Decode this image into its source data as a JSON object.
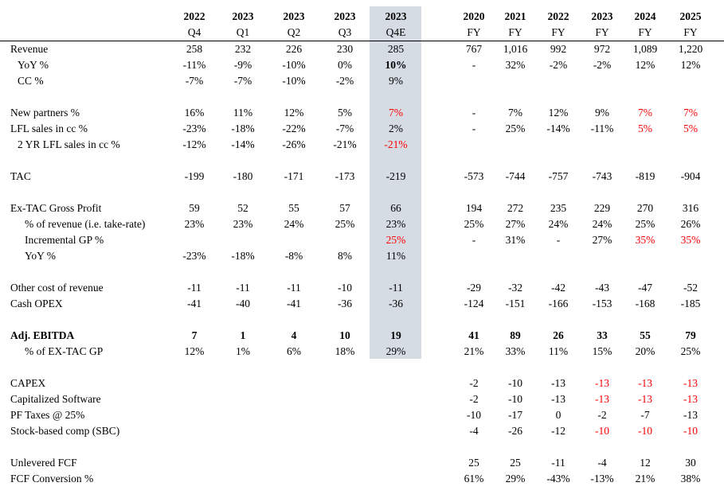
{
  "header": {
    "quarters": [
      {
        "year": "2022",
        "period": "Q4"
      },
      {
        "year": "2023",
        "period": "Q1"
      },
      {
        "year": "2023",
        "period": "Q2"
      },
      {
        "year": "2023",
        "period": "Q3"
      },
      {
        "year": "2023",
        "period": "Q4E"
      }
    ],
    "years": [
      {
        "year": "2020",
        "period": "FY"
      },
      {
        "year": "2021",
        "period": "FY"
      },
      {
        "year": "2022",
        "period": "FY"
      },
      {
        "year": "2023",
        "period": "FY"
      },
      {
        "year": "2024",
        "period": "FY"
      },
      {
        "year": "2025",
        "period": "FY"
      }
    ]
  },
  "rows": [
    {
      "label": "Revenue",
      "indent": 0,
      "bold": false,
      "q": [
        "258",
        "232",
        "226",
        "230",
        "285"
      ],
      "a": [
        "767",
        "1,016",
        "992",
        "972",
        "1,089",
        "1,220"
      ]
    },
    {
      "label": "YoY %",
      "indent": 1,
      "bold": false,
      "q": [
        "-11%",
        "-9%",
        "-10%",
        "0%",
        "10%"
      ],
      "a": [
        "-",
        "32%",
        "-2%",
        "-2%",
        "12%",
        "12%"
      ],
      "bq": [
        4
      ]
    },
    {
      "label": "CC %",
      "indent": 1,
      "bold": false,
      "q": [
        "-7%",
        "-7%",
        "-10%",
        "-2%",
        "9%"
      ],
      "a": [
        "",
        "",
        "",
        "",
        "",
        ""
      ]
    },
    {
      "spacer": true
    },
    {
      "label": "New partners %",
      "indent": 0,
      "bold": false,
      "q": [
        "16%",
        "11%",
        "12%",
        "5%",
        "7%"
      ],
      "a": [
        "-",
        "7%",
        "12%",
        "9%",
        "7%",
        "7%"
      ],
      "rq": [
        4
      ],
      "ra": [
        4,
        5
      ]
    },
    {
      "label": "LFL sales in cc %",
      "indent": 0,
      "bold": false,
      "q": [
        "-23%",
        "-18%",
        "-22%",
        "-7%",
        "2%"
      ],
      "a": [
        "-",
        "25%",
        "-14%",
        "-11%",
        "5%",
        "5%"
      ],
      "ra": [
        4,
        5
      ]
    },
    {
      "label": "2 YR LFL sales in cc %",
      "indent": 1,
      "bold": false,
      "q": [
        "-12%",
        "-14%",
        "-26%",
        "-21%",
        "-21%"
      ],
      "a": [
        "",
        "",
        "",
        "",
        "",
        ""
      ],
      "rq": [
        4
      ]
    },
    {
      "spacer": true
    },
    {
      "label": "TAC",
      "indent": 0,
      "bold": false,
      "q": [
        "-199",
        "-180",
        "-171",
        "-173",
        "-219"
      ],
      "a": [
        "-573",
        "-744",
        "-757",
        "-743",
        "-819",
        "-904"
      ]
    },
    {
      "spacer": true
    },
    {
      "label": "Ex-TAC Gross Profit",
      "indent": 0,
      "bold": false,
      "q": [
        "59",
        "52",
        "55",
        "57",
        "66"
      ],
      "a": [
        "194",
        "272",
        "235",
        "229",
        "270",
        "316"
      ]
    },
    {
      "label": "% of revenue (i.e. take-rate)",
      "indent": 2,
      "bold": false,
      "q": [
        "23%",
        "23%",
        "24%",
        "25%",
        "23%"
      ],
      "a": [
        "25%",
        "27%",
        "24%",
        "24%",
        "25%",
        "26%"
      ]
    },
    {
      "label": "Incremental GP %",
      "indent": 2,
      "bold": false,
      "q": [
        "",
        "",
        "",
        "",
        "25%"
      ],
      "a": [
        "-",
        "31%",
        "-",
        "27%",
        "35%",
        "35%"
      ],
      "rq": [
        4
      ],
      "ra": [
        4,
        5
      ]
    },
    {
      "label": "YoY %",
      "indent": 2,
      "bold": false,
      "q": [
        "-23%",
        "-18%",
        "-8%",
        "8%",
        "11%"
      ],
      "a": [
        "",
        "",
        "",
        "",
        "",
        ""
      ]
    },
    {
      "spacer": true
    },
    {
      "label": "Other cost of revenue",
      "indent": 0,
      "bold": false,
      "q": [
        "-11",
        "-11",
        "-11",
        "-10",
        "-11"
      ],
      "a": [
        "-29",
        "-32",
        "-42",
        "-43",
        "-47",
        "-52"
      ]
    },
    {
      "label": "Cash OPEX",
      "indent": 0,
      "bold": false,
      "q": [
        "-41",
        "-40",
        "-41",
        "-36",
        "-36"
      ],
      "a": [
        "-124",
        "-151",
        "-166",
        "-153",
        "-168",
        "-185"
      ]
    },
    {
      "spacer": true
    },
    {
      "label": "Adj. EBITDA",
      "indent": 0,
      "bold": true,
      "q": [
        "7",
        "1",
        "4",
        "10",
        "19"
      ],
      "a": [
        "41",
        "89",
        "26",
        "33",
        "55",
        "79"
      ]
    },
    {
      "label": "% of EX-TAC GP",
      "indent": 2,
      "bold": false,
      "q": [
        "12%",
        "1%",
        "6%",
        "18%",
        "29%"
      ],
      "a": [
        "21%",
        "33%",
        "11%",
        "15%",
        "20%",
        "25%"
      ]
    },
    {
      "spacer": true
    },
    {
      "label": "CAPEX",
      "indent": 0,
      "bold": false,
      "q": [
        "",
        "",
        "",
        "",
        ""
      ],
      "a": [
        "-2",
        "-10",
        "-13",
        "-13",
        "-13",
        "-13"
      ],
      "ra": [
        3,
        4,
        5
      ]
    },
    {
      "label": "Capitalized Software",
      "indent": 0,
      "bold": false,
      "q": [
        "",
        "",
        "",
        "",
        ""
      ],
      "a": [
        "-2",
        "-10",
        "-13",
        "-13",
        "-13",
        "-13"
      ],
      "ra": [
        3,
        4,
        5
      ]
    },
    {
      "label": "PF Taxes @ 25%",
      "indent": 0,
      "bold": false,
      "q": [
        "",
        "",
        "",
        "",
        ""
      ],
      "a": [
        "-10",
        "-17",
        "0",
        "-2",
        "-7",
        "-13"
      ]
    },
    {
      "label": "Stock-based comp (SBC)",
      "indent": 0,
      "bold": false,
      "q": [
        "",
        "",
        "",
        "",
        ""
      ],
      "a": [
        "-4",
        "-26",
        "-12",
        "-10",
        "-10",
        "-10"
      ],
      "ra": [
        3,
        4,
        5
      ]
    },
    {
      "spacer": true
    },
    {
      "label": "Unlevered FCF",
      "indent": 0,
      "bold": false,
      "q": [
        "",
        "",
        "",
        "",
        ""
      ],
      "a": [
        "25",
        "25",
        "-11",
        "-4",
        "12",
        "30"
      ]
    },
    {
      "label": "FCF Conversion %",
      "indent": 0,
      "bold": false,
      "q": [
        "",
        "",
        "",
        "",
        ""
      ],
      "a": [
        "61%",
        "29%",
        "-43%",
        "-13%",
        "21%",
        "38%"
      ]
    }
  ],
  "colors": {
    "highlight": "#d6dce4",
    "estimate_red": "#ff0000"
  }
}
